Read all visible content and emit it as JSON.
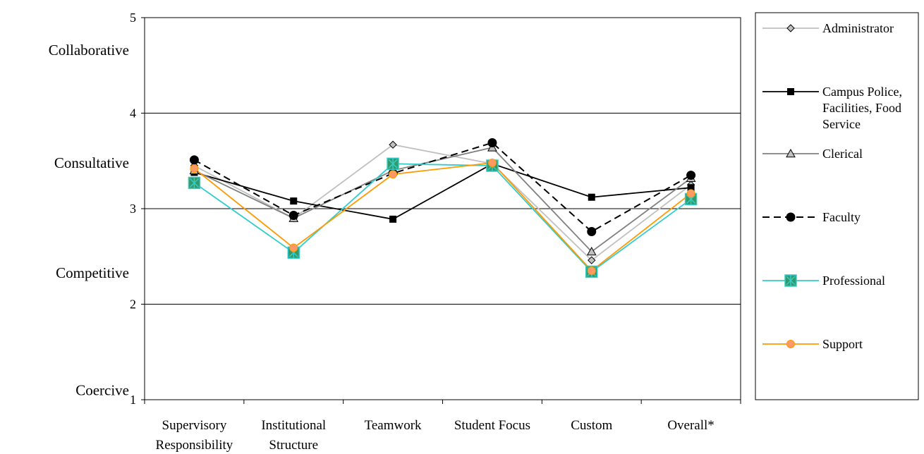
{
  "chart_data": {
    "type": "line",
    "categories": [
      [
        "Supervisory",
        "Responsibility"
      ],
      [
        "Institutional",
        "Structure"
      ],
      [
        "Teamwork"
      ],
      [
        "Student Focus"
      ],
      [
        "Custom"
      ],
      [
        "Overall*"
      ]
    ],
    "ylim": [
      1,
      5
    ],
    "yticks": [
      1,
      2,
      3,
      4,
      5
    ],
    "ytick_labels": [
      "1",
      "2",
      "3",
      "4",
      "5"
    ],
    "y_category_labels": [
      {
        "label": "Coercive",
        "y": 1.1
      },
      {
        "label": "Competitive",
        "y": 2.33
      },
      {
        "label": "Consultative",
        "y": 3.48
      },
      {
        "label": "Collaborative",
        "y": 4.66
      }
    ],
    "grid": true,
    "legend_position": "right",
    "series": [
      {
        "name": [
          "Administrator"
        ],
        "color": "#c0c0c0",
        "marker": "diamond",
        "dash": false,
        "values": [
          3.45,
          2.9,
          3.67,
          3.47,
          2.46,
          3.25
        ]
      },
      {
        "name": [
          "Campus Police,",
          "Facilities, Food",
          "Service"
        ],
        "color": "#000000",
        "marker": "square",
        "dash": false,
        "values": [
          3.38,
          3.08,
          2.89,
          3.47,
          3.12,
          3.22
        ]
      },
      {
        "name": [
          "Clerical"
        ],
        "color": "#808080",
        "marker": "triangle",
        "dash": false,
        "values": [
          3.4,
          2.9,
          3.4,
          3.64,
          2.55,
          3.32
        ]
      },
      {
        "name": [
          "Faculty"
        ],
        "color": "#000000",
        "marker": "circle",
        "dash": true,
        "values": [
          3.51,
          2.93,
          3.37,
          3.69,
          2.76,
          3.35
        ]
      },
      {
        "name": [
          "Professional"
        ],
        "color": "#33cccc",
        "marker": "xsquare",
        "dash": false,
        "values": [
          3.27,
          2.54,
          3.47,
          3.45,
          2.34,
          3.1
        ]
      },
      {
        "name": [
          "Support"
        ],
        "color": "#ff9900",
        "marker": "orangecircle",
        "dash": false,
        "values": [
          3.42,
          2.59,
          3.36,
          3.48,
          2.35,
          3.16
        ]
      }
    ]
  }
}
